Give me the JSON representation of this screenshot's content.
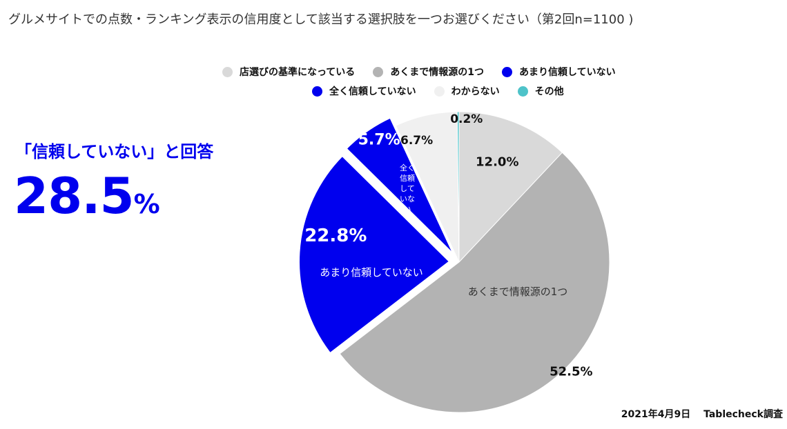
{
  "title": "グルメサイトでの点数・ランキング表示の信用度として該当する選択肢を一つお選びください（第2回n=1100 )",
  "callout": {
    "label": "「信頼していない」と回答",
    "value": "28.5",
    "unit": "%"
  },
  "source": "2021年4月9日　 Tablecheck調査",
  "chart_data": {
    "type": "pie",
    "title": "グルメサイトでの点数・ランキング表示の信用度として該当する選択肢を一つお選びください（第2回n=1100 )",
    "legend_position": "top",
    "slices": [
      {
        "label": "店選びの基準になっている",
        "value": 12.0,
        "display": "12.0%",
        "color": "#d9d9d9",
        "text_color": "#111111",
        "exploded": false,
        "inner_label": ""
      },
      {
        "label": "あくまで情報源の1つ",
        "value": 52.5,
        "display": "52.5%",
        "color": "#b3b3b3",
        "text_color": "#111111",
        "exploded": false,
        "inner_label": "あくまで情報源の1つ"
      },
      {
        "label": "あまり信頼していない",
        "value": 22.8,
        "display": "22.8%",
        "color": "#0000ee",
        "text_color": "#ffffff",
        "exploded": true,
        "inner_label": "あまり信頼していない"
      },
      {
        "label": "全く信頼していない",
        "value": 5.7,
        "display": "5.7%",
        "color": "#0000ee",
        "text_color": "#ffffff",
        "exploded": true,
        "inner_label": "全く信頼していない"
      },
      {
        "label": "わからない",
        "value": 6.7,
        "display": "6.7%",
        "color": "#f0f0f0",
        "text_color": "#111111",
        "exploded": false,
        "inner_label": ""
      },
      {
        "label": "その他",
        "value": 0.2,
        "display": "0.2%",
        "color": "#4ec3c9",
        "text_color": "#111111",
        "exploded": false,
        "inner_label": ""
      }
    ],
    "legend_rows": [
      [
        "店選びの基準になっている",
        "あくまで情報源の1つ",
        "あまり信頼していない"
      ],
      [
        "全く信頼していない",
        "わからない",
        "その他"
      ]
    ]
  }
}
